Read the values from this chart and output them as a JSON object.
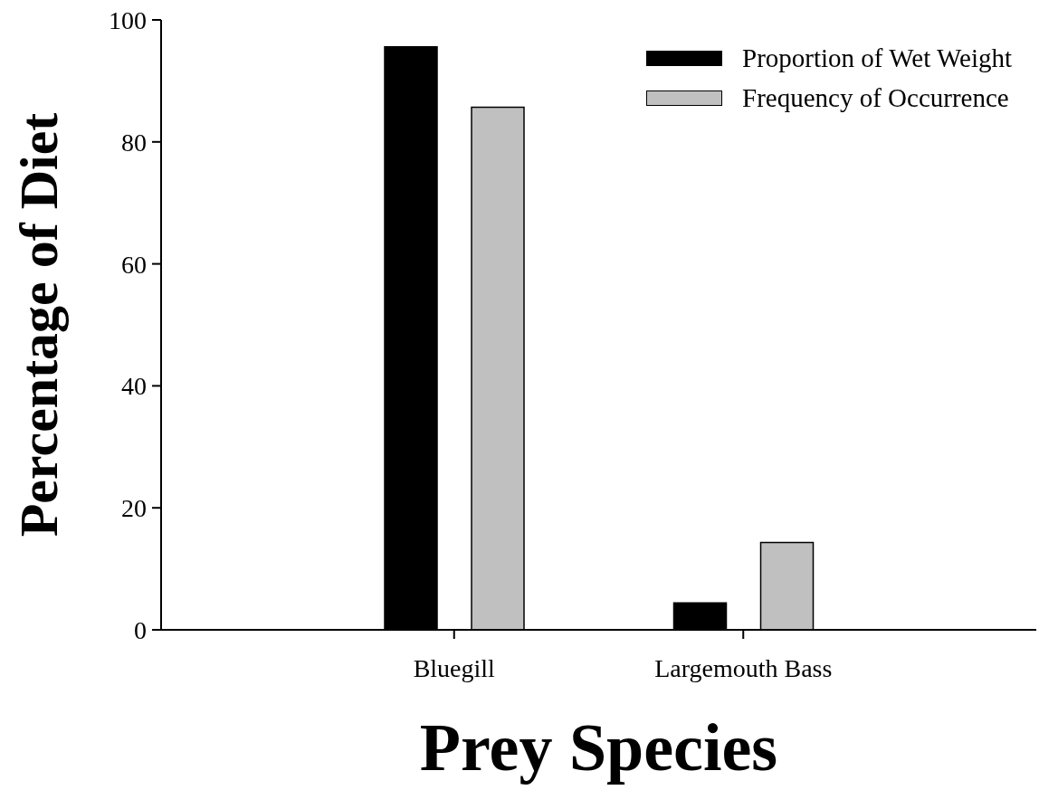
{
  "chart_data": {
    "type": "bar",
    "xlabel": "Prey Species",
    "ylabel": "Percentage of Diet",
    "categories": [
      "Bluegill",
      "Largemouth Bass"
    ],
    "series": [
      {
        "name": "Proportion of Wet Weight",
        "color": "#000000",
        "values": [
          95.6,
          4.4
        ]
      },
      {
        "name": "Frequency of Occurrence",
        "color": "#c0c0c0",
        "values": [
          85.7,
          14.3
        ]
      }
    ],
    "ylim": [
      0,
      100
    ],
    "yticks": [
      0,
      20,
      40,
      60,
      80,
      100
    ],
    "legend": "top right"
  }
}
